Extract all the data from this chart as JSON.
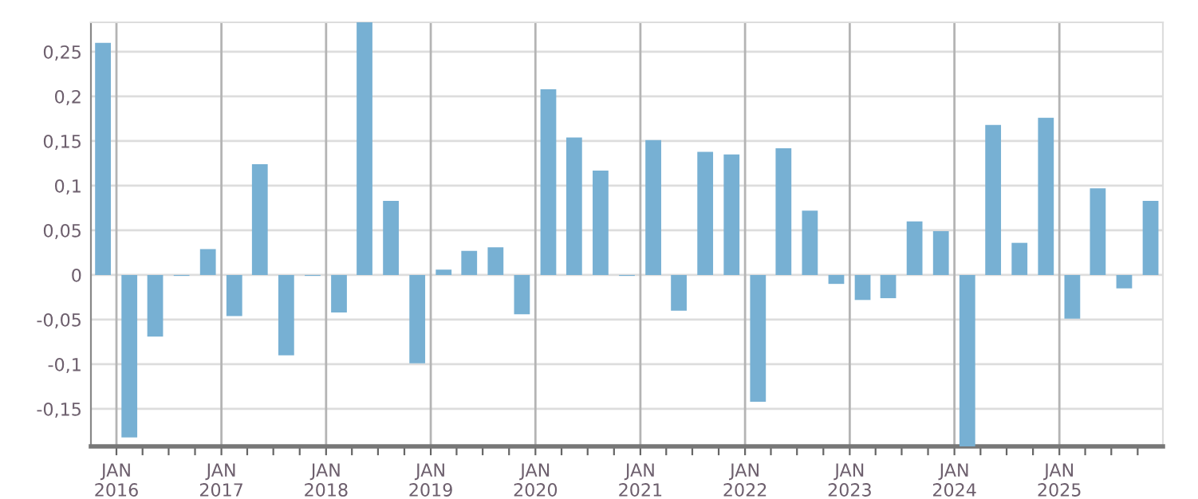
{
  "chart_data": {
    "type": "bar",
    "color": "#77b0d3",
    "x": [
      "2015-11-15",
      "2016-02-15",
      "2016-05-15",
      "2016-08-15",
      "2016-11-15",
      "2017-02-15",
      "2017-05-15",
      "2017-08-15",
      "2017-11-15",
      "2018-02-15",
      "2018-05-15",
      "2018-08-15",
      "2018-11-15",
      "2019-02-15",
      "2019-05-15",
      "2019-08-15",
      "2019-11-15",
      "2020-02-15",
      "2020-05-15",
      "2020-08-15",
      "2020-11-15",
      "2021-02-15",
      "2021-05-15",
      "2021-08-15",
      "2021-11-15",
      "2022-02-15",
      "2022-05-15",
      "2022-08-15",
      "2022-11-15",
      "2023-02-15",
      "2023-05-15",
      "2023-08-15",
      "2023-11-15",
      "2024-02-15",
      "2024-05-15",
      "2024-08-15",
      "2024-11-15",
      "2025-02-15",
      "2025-05-15",
      "2025-08-15",
      "2025-11-15"
    ],
    "values": [
      0.26,
      -0.182,
      -0.069,
      -0.001,
      0.029,
      -0.046,
      0.124,
      -0.09,
      -0.001,
      -0.042,
      0.283,
      0.083,
      -0.099,
      0.006,
      0.027,
      0.031,
      -0.044,
      0.208,
      0.154,
      0.117,
      -0.001,
      0.151,
      -0.04,
      0.138,
      0.135,
      -0.142,
      0.142,
      0.072,
      -0.01,
      -0.028,
      -0.026,
      0.06,
      0.049,
      -0.192,
      0.168,
      0.036,
      0.176,
      -0.049,
      0.097,
      -0.015,
      0.083
    ],
    "xlim": [
      "2015-10-04",
      "2025-12-28"
    ],
    "xticks": [
      {
        "value": "2016-01-01",
        "label": "JAN\n2016"
      },
      {
        "value": "2016-04-01",
        "label": null
      },
      {
        "value": "2016-07-01",
        "label": null
      },
      {
        "value": "2016-10-01",
        "label": null
      },
      {
        "value": "2017-01-01",
        "label": "JAN\n2017"
      },
      {
        "value": "2017-04-01",
        "label": null
      },
      {
        "value": "2017-07-01",
        "label": null
      },
      {
        "value": "2017-10-01",
        "label": null
      },
      {
        "value": "2018-01-01",
        "label": "JAN\n2018"
      },
      {
        "value": "2018-04-01",
        "label": null
      },
      {
        "value": "2018-07-01",
        "label": null
      },
      {
        "value": "2018-10-01",
        "label": null
      },
      {
        "value": "2019-01-01",
        "label": "JAN\n2019"
      },
      {
        "value": "2019-04-01",
        "label": null
      },
      {
        "value": "2019-07-01",
        "label": null
      },
      {
        "value": "2019-10-01",
        "label": null
      },
      {
        "value": "2020-01-01",
        "label": "JAN\n2020"
      },
      {
        "value": "2020-04-01",
        "label": null
      },
      {
        "value": "2020-07-01",
        "label": null
      },
      {
        "value": "2020-10-01",
        "label": null
      },
      {
        "value": "2021-01-01",
        "label": "JAN\n2021"
      },
      {
        "value": "2021-04-01",
        "label": null
      },
      {
        "value": "2021-07-01",
        "label": null
      },
      {
        "value": "2021-10-01",
        "label": null
      },
      {
        "value": "2022-01-01",
        "label": "JAN\n2022"
      },
      {
        "value": "2022-04-01",
        "label": null
      },
      {
        "value": "2022-07-01",
        "label": null
      },
      {
        "value": "2022-10-01",
        "label": null
      },
      {
        "value": "2023-01-01",
        "label": "JAN\n2023"
      },
      {
        "value": "2023-04-01",
        "label": null
      },
      {
        "value": "2023-07-01",
        "label": null
      },
      {
        "value": "2023-10-01",
        "label": null
      },
      {
        "value": "2024-01-01",
        "label": "JAN\n2024"
      },
      {
        "value": "2024-04-01",
        "label": null
      },
      {
        "value": "2024-07-01",
        "label": null
      },
      {
        "value": "2024-10-01",
        "label": null
      },
      {
        "value": "2025-01-01",
        "label": "JAN\n2025"
      },
      {
        "value": "2025-04-01",
        "label": null
      },
      {
        "value": "2025-07-01",
        "label": null
      },
      {
        "value": "2025-10-01",
        "label": null
      }
    ],
    "ylim": [
      -0.192,
      0.283
    ],
    "yticks": [
      {
        "value": -0.15,
        "label": "-0,15"
      },
      {
        "value": -0.1,
        "label": "-0,1"
      },
      {
        "value": -0.05,
        "label": "-0,05"
      },
      0,
      {
        "value": 0.05,
        "label": "0,05"
      },
      {
        "value": 0.1,
        "label": "0,1"
      },
      {
        "value": 0.15,
        "label": "0,15"
      },
      {
        "value": 0.2,
        "label": "0,2"
      },
      {
        "value": 0.25,
        "label": "0,25"
      }
    ],
    "grid": true
  }
}
